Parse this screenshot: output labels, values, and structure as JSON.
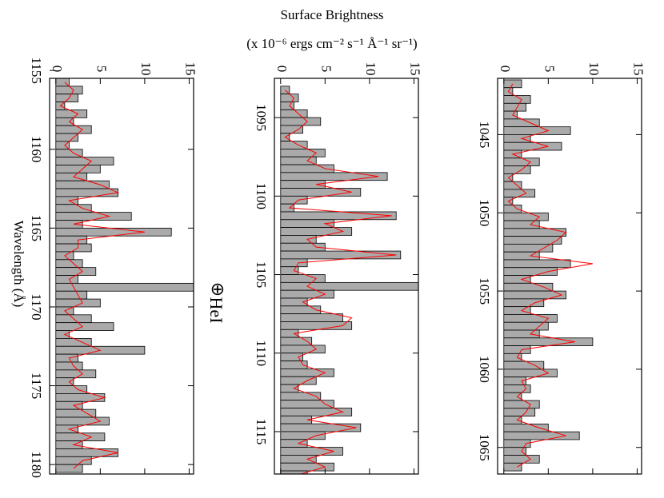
{
  "title": "Surface Brightness",
  "subtitle": "(x 10⁻⁶ ergs cm⁻² s⁻¹ Å⁻¹ sr⁻¹)",
  "x_label": "Wavelength (Å)",
  "annotations": [
    "⊕",
    "HeI"
  ],
  "chart_data": [
    {
      "type": "step",
      "xlim": [
        1155.5,
        1180.6
      ],
      "xticks": [
        1155,
        1160,
        1165,
        1170,
        1175,
        1180
      ],
      "ylim": [
        -0.7,
        15.5
      ],
      "yticks": [
        0,
        5,
        10,
        15
      ],
      "x": [
        1155.75,
        1156.25,
        1156.75,
        1157.25,
        1157.75,
        1158.25,
        1158.75,
        1159.25,
        1159.75,
        1160.25,
        1160.75,
        1161.25,
        1161.75,
        1162.25,
        1162.75,
        1163.25,
        1163.75,
        1164.25,
        1164.75,
        1165.25,
        1165.75,
        1166.25,
        1166.75,
        1167.25,
        1167.75,
        1168.25,
        1168.75,
        1169.25,
        1169.75,
        1170.25,
        1170.75,
        1171.25,
        1171.75,
        1172.25,
        1172.75,
        1173.25,
        1173.75,
        1174.25,
        1174.75,
        1175.25,
        1175.75,
        1176.25,
        1176.75,
        1177.25,
        1177.75,
        1178.25,
        1178.75,
        1179.25,
        1179.75,
        1180.25
      ],
      "series": [
        {
          "color": "#000000",
          "values": [
            1.5,
            3,
            2.5,
            1,
            3.5,
            2,
            4,
            2.5,
            1.5,
            3,
            6.5,
            5,
            3.5,
            6,
            7,
            2.5,
            4,
            8.5,
            3,
            13,
            3.5,
            4,
            2,
            3,
            4.5,
            2.5,
            16,
            3.5,
            5,
            2,
            4,
            6.5,
            1.5,
            4,
            10,
            2.5,
            3,
            4.5,
            2,
            3.5,
            5.5,
            3,
            4.5,
            6,
            2.5,
            5.5,
            3,
            7,
            4,
            3
          ]
        },
        {
          "color": "#ff0000",
          "values": [
            1,
            2,
            1.5,
            0.5,
            2.5,
            1.5,
            3,
            2,
            1,
            2,
            4,
            3,
            2,
            5,
            7,
            1.5,
            3,
            6,
            2,
            10,
            2.5,
            2.5,
            1,
            2,
            3,
            1.5,
            2,
            2.5,
            3,
            1,
            2,
            3,
            1,
            3,
            5,
            1.5,
            2,
            3,
            1.5,
            2.5,
            5.5,
            2,
            3.5,
            5,
            1.5,
            4,
            2,
            7,
            3,
            2
          ]
        }
      ]
    },
    {
      "type": "step",
      "xlim": [
        1092.5,
        1117.7
      ],
      "xticks": [
        1095,
        1100,
        1105,
        1110,
        1115
      ],
      "ylim": [
        -0.7,
        15.5
      ],
      "yticks": [
        0,
        5,
        10,
        15
      ],
      "x": [
        1093.25,
        1093.75,
        1094.25,
        1094.75,
        1095.25,
        1095.75,
        1096.25,
        1096.75,
        1097.25,
        1097.75,
        1098.25,
        1098.75,
        1099.25,
        1099.75,
        1100.25,
        1100.75,
        1101.25,
        1101.75,
        1102.25,
        1102.75,
        1103.25,
        1103.75,
        1104.25,
        1104.75,
        1105.25,
        1105.75,
        1106.25,
        1106.75,
        1107.25,
        1107.75,
        1108.25,
        1108.75,
        1109.25,
        1109.75,
        1110.25,
        1110.75,
        1111.25,
        1111.75,
        1112.25,
        1112.75,
        1113.25,
        1113.75,
        1114.25,
        1114.75,
        1115.25,
        1115.75,
        1116.25,
        1116.75,
        1117.25,
        1117.75
      ],
      "series": [
        {
          "color": "#000000",
          "values": [
            1,
            2,
            1.5,
            3,
            4.5,
            2.5,
            1,
            3,
            5,
            4,
            6,
            12,
            5,
            9,
            3,
            1.5,
            13,
            6,
            8,
            4,
            5,
            13.5,
            3,
            2,
            5,
            16,
            6,
            3,
            4.5,
            7,
            8,
            2,
            3.5,
            5,
            2.5,
            3,
            6,
            4,
            2,
            4.5,
            6,
            8,
            3.5,
            9,
            5,
            3,
            7,
            4,
            6,
            3
          ]
        },
        {
          "color": "#ff0000",
          "values": [
            0.5,
            1.5,
            1,
            2,
            3,
            2,
            0.5,
            2,
            4,
            3,
            5,
            11,
            4,
            8,
            2,
            1,
            12.5,
            5,
            7,
            3,
            4,
            13,
            2,
            1.5,
            4,
            3,
            5,
            2.5,
            4,
            8,
            7,
            1.5,
            3,
            4,
            2,
            2.5,
            5,
            3,
            1.5,
            4,
            5,
            7,
            3,
            8.5,
            4,
            2,
            6,
            3,
            5,
            2
          ]
        }
      ]
    },
    {
      "type": "step",
      "xlim": [
        1041.4,
        1066.7
      ],
      "xticks": [
        1045,
        1050,
        1055,
        1060,
        1065
      ],
      "ylim": [
        -0.7,
        15.5
      ],
      "yticks": [
        0,
        5,
        10,
        15
      ],
      "x": [
        1041.75,
        1042.25,
        1042.75,
        1043.25,
        1043.75,
        1044.25,
        1044.75,
        1045.25,
        1045.75,
        1046.25,
        1046.75,
        1047.25,
        1047.75,
        1048.25,
        1048.75,
        1049.25,
        1049.75,
        1050.25,
        1050.75,
        1051.25,
        1051.75,
        1052.25,
        1052.75,
        1053.25,
        1053.75,
        1054.25,
        1054.75,
        1055.25,
        1055.75,
        1056.25,
        1056.75,
        1057.25,
        1057.75,
        1058.25,
        1058.75,
        1059.25,
        1059.75,
        1060.25,
        1060.75,
        1061.25,
        1061.75,
        1062.25,
        1062.75,
        1063.25,
        1063.75,
        1064.25,
        1064.75,
        1065.25,
        1065.75,
        1066.25
      ],
      "series": [
        {
          "color": "#000000",
          "values": [
            2,
            1,
            3,
            2.5,
            1.5,
            4,
            7.5,
            3,
            6.5,
            2,
            4,
            3,
            1,
            2,
            3.5,
            1,
            2,
            5,
            4,
            7,
            6.5,
            5.5,
            4,
            7.5,
            6,
            3,
            5.5,
            7,
            4.5,
            3,
            6,
            5,
            4,
            10,
            3,
            2,
            4.5,
            6,
            2.5,
            3,
            2,
            4,
            3.5,
            2,
            5,
            8.5,
            3,
            2.5,
            4,
            2
          ]
        },
        {
          "color": "#ff0000",
          "values": [
            1,
            0.5,
            2,
            1.5,
            1,
            3,
            5,
            2,
            5,
            1,
            3,
            2,
            0.5,
            1.5,
            2.5,
            0.5,
            1.5,
            4,
            3,
            7,
            6,
            4.5,
            3,
            10,
            5,
            2,
            4.5,
            6.5,
            3.5,
            2,
            5,
            4,
            3,
            8,
            2,
            1.5,
            3.5,
            5,
            2,
            2.5,
            1.5,
            3,
            2.5,
            1.5,
            4,
            7,
            2.5,
            2,
            3,
            1.5
          ]
        }
      ]
    }
  ]
}
